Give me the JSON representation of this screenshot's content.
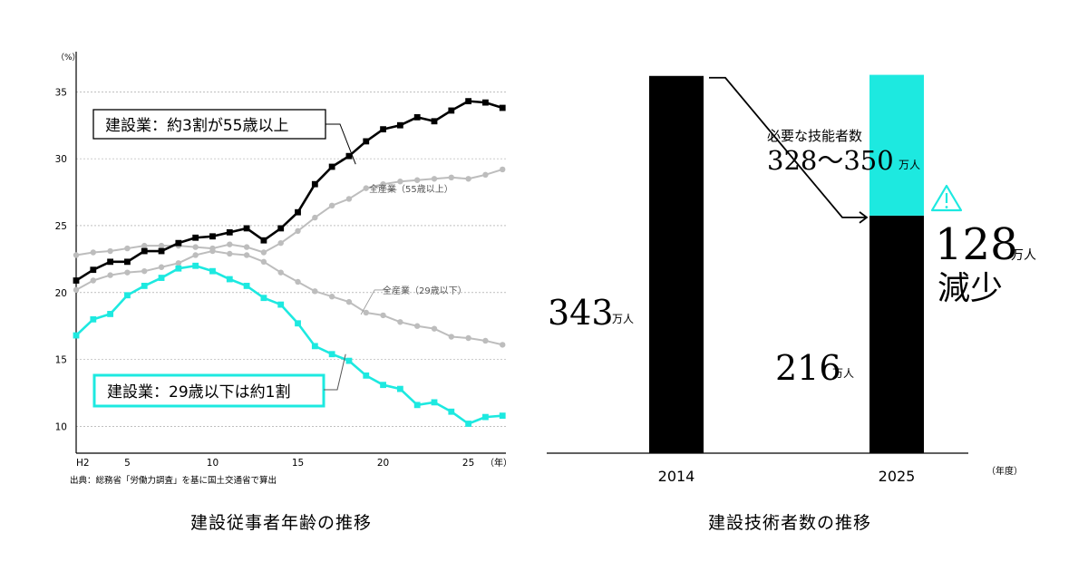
{
  "chart_data": [
    {
      "type": "line",
      "title": "建設従事者年齢の推移",
      "ylabel": "（%）",
      "xlabel": "（年）",
      "source": "出典：総務省「労働力調査」を基に国土交通省で算出",
      "x": [
        2,
        3,
        4,
        5,
        6,
        7,
        8,
        9,
        10,
        11,
        12,
        13,
        14,
        15,
        16,
        17,
        18,
        19,
        20,
        21,
        22,
        23,
        24,
        25,
        26,
        27
      ],
      "xticks": [
        {
          "value": 2,
          "label": "H2"
        },
        {
          "value": 5,
          "label": "5"
        },
        {
          "value": 10,
          "label": "10"
        },
        {
          "value": 15,
          "label": "15"
        },
        {
          "value": 20,
          "label": "20"
        },
        {
          "value": 25,
          "label": "25"
        }
      ],
      "xlim": [
        2,
        27.2
      ],
      "ylim": [
        8,
        38
      ],
      "yticks": [
        10,
        15,
        20,
        25,
        30,
        35
      ],
      "grid": true,
      "series": [
        {
          "name": "全産業（55歳以上）",
          "color": "#bdbdbd",
          "marker": "circle",
          "values": [
            22.8,
            23.0,
            23.1,
            23.3,
            23.5,
            23.5,
            23.5,
            23.4,
            23.3,
            23.6,
            23.4,
            23.0,
            23.7,
            24.6,
            25.6,
            26.5,
            27.0,
            27.8,
            28.1,
            28.3,
            28.4,
            28.5,
            28.6,
            28.5,
            28.8,
            29.2
          ]
        },
        {
          "name": "全産業（29歳以下）",
          "color": "#bdbdbd",
          "marker": "circle",
          "values": [
            20.2,
            20.9,
            21.3,
            21.5,
            21.6,
            21.9,
            22.2,
            22.8,
            23.1,
            22.9,
            22.8,
            22.3,
            21.5,
            20.8,
            20.1,
            19.7,
            19.3,
            18.5,
            18.3,
            17.8,
            17.5,
            17.3,
            16.7,
            16.6,
            16.4,
            16.1
          ]
        },
        {
          "name": "建設業",
          "color": "#000000",
          "marker": "square",
          "values": [
            20.9,
            21.7,
            22.3,
            22.3,
            23.1,
            23.1,
            23.7,
            24.1,
            24.2,
            24.5,
            24.8,
            23.9,
            24.8,
            26.0,
            28.1,
            29.4,
            30.2,
            31.3,
            32.2,
            32.5,
            33.1,
            32.8,
            33.6,
            34.3,
            34.2,
            33.8
          ]
        },
        {
          "name": "建設業",
          "color": "#1de9e0",
          "marker": "square",
          "values": [
            16.8,
            18.0,
            18.4,
            19.8,
            20.5,
            21.1,
            21.8,
            22.0,
            21.6,
            21.0,
            20.5,
            19.6,
            19.1,
            17.7,
            16.0,
            15.4,
            14.9,
            13.8,
            13.1,
            12.8,
            11.6,
            11.8,
            11.1,
            10.2,
            10.7,
            10.8
          ]
        }
      ],
      "annotations": [
        {
          "text": "全産業（55歳以上）",
          "series": 0
        },
        {
          "text": "全産業（29歳以下）",
          "series": 1
        },
        {
          "text": "建設業：約3割が55歳以上",
          "series": 2
        },
        {
          "text": "建設業：29歳以下は約1割",
          "series": 3
        }
      ]
    },
    {
      "type": "bar",
      "title": "建設技術者数の推移",
      "xlabel": "（年度）",
      "categories": [
        "2014",
        "2025"
      ],
      "values": [
        343,
        216
      ],
      "value_labels": [
        "343",
        "216"
      ],
      "unit": "万人",
      "colors": {
        "base": "#000000",
        "shortfall": "#1de9e0",
        "warning": "#1de9e0"
      },
      "ylim": [
        0,
        380
      ],
      "stacked": [
        {
          "category": "2025",
          "value": 128,
          "label": "128",
          "unit": "万人",
          "caption": "減少"
        }
      ],
      "required": {
        "label": "必要な技能者数",
        "value_range": [
          328,
          350
        ],
        "text": "328～350",
        "unit": "万人"
      }
    }
  ]
}
